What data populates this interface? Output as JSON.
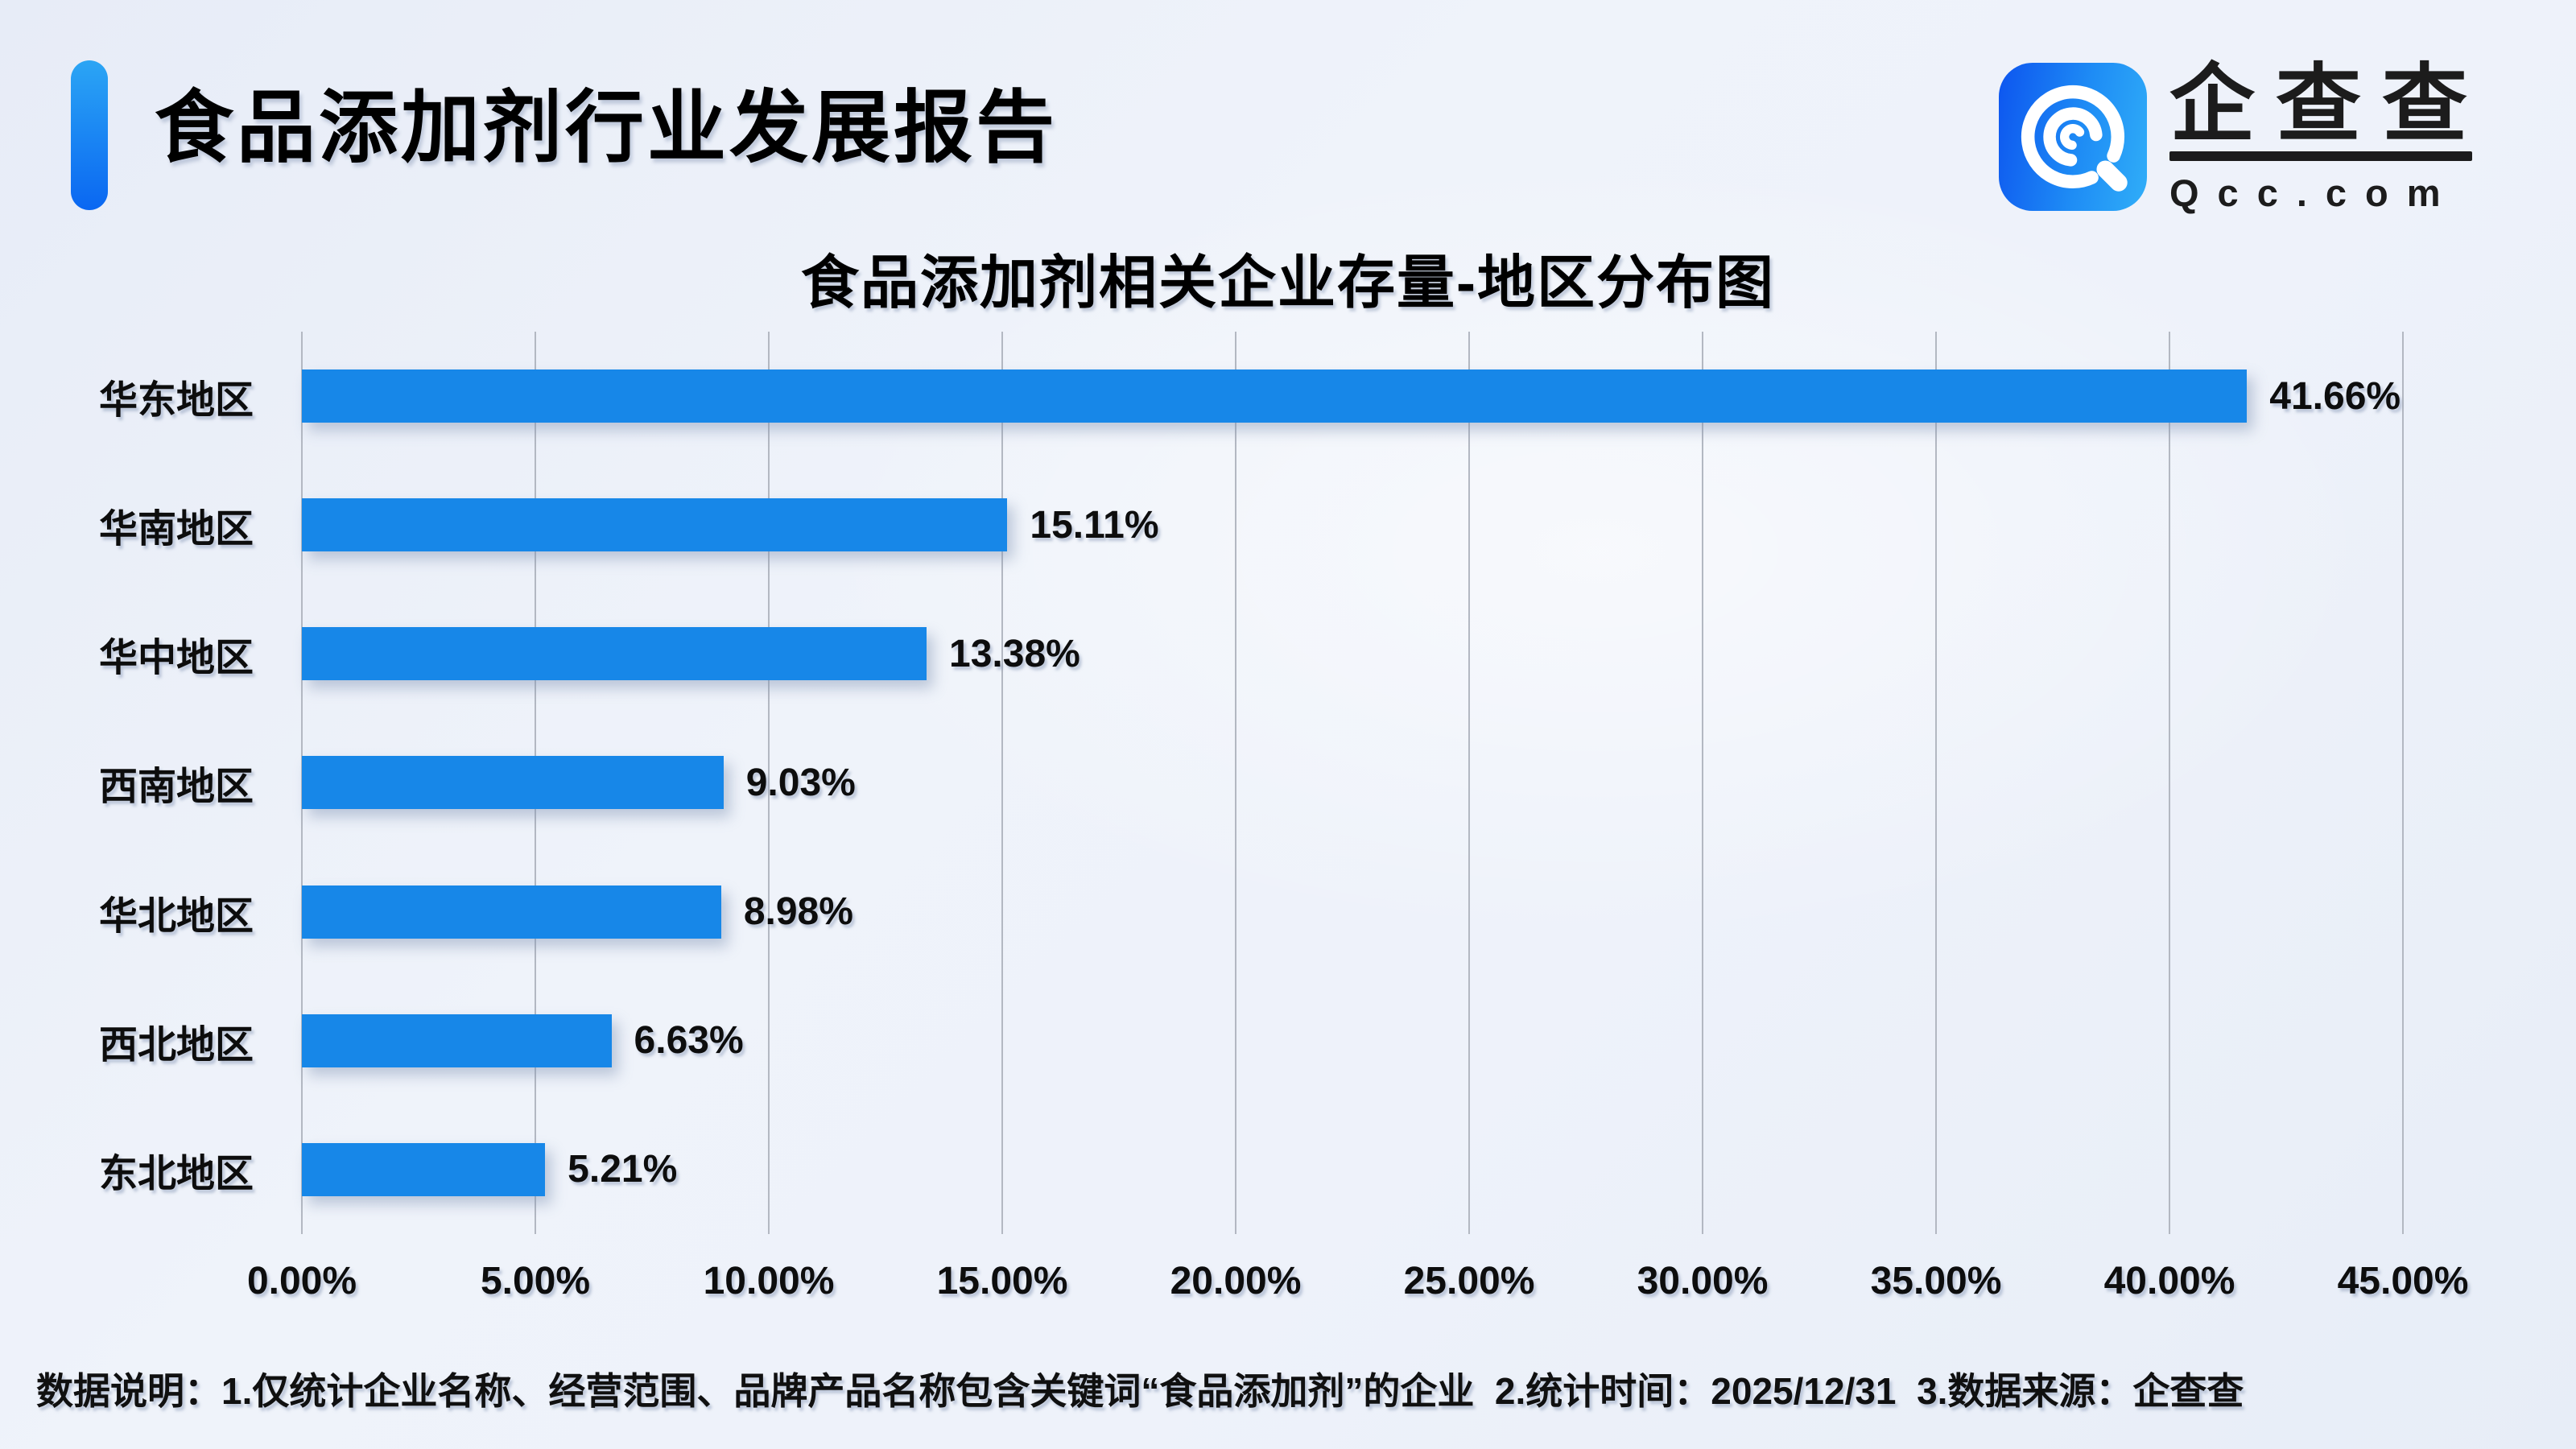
{
  "header": {
    "title": "食品添加剂行业发展报告"
  },
  "logo": {
    "brand": "企查查",
    "domain": "Qcc.com",
    "icon": "qcc-magnifier-icon",
    "icon_gradient": [
      "#0d55ef",
      "#30aef8"
    ]
  },
  "chart_data": {
    "type": "bar",
    "orientation": "horizontal",
    "title": "食品添加剂相关企业存量-地区分布图",
    "categories": [
      "华东地区",
      "华南地区",
      "华中地区",
      "西南地区",
      "华北地区",
      "西北地区",
      "东北地区"
    ],
    "values": [
      41.66,
      15.11,
      13.38,
      9.03,
      8.98,
      6.63,
      5.21
    ],
    "value_labels": [
      "41.66%",
      "15.11%",
      "13.38%",
      "9.03%",
      "8.98%",
      "6.63%",
      "5.21%"
    ],
    "x_ticks": [
      "0.00%",
      "5.00%",
      "10.00%",
      "15.00%",
      "20.00%",
      "25.00%",
      "30.00%",
      "35.00%",
      "40.00%",
      "45.00%"
    ],
    "xlim": [
      0,
      45
    ],
    "xlabel": "",
    "ylabel": "",
    "grid": true,
    "legend_position": "none",
    "bar_color": "#1787e8",
    "gridline_color": "#b3b8c2"
  },
  "footnote": "数据说明：1.仅统计企业名称、经营范围、品牌产品名称包含关键词“食品添加剂”的企业  2.统计时间：2025/12/31  3.数据来源：企查查"
}
